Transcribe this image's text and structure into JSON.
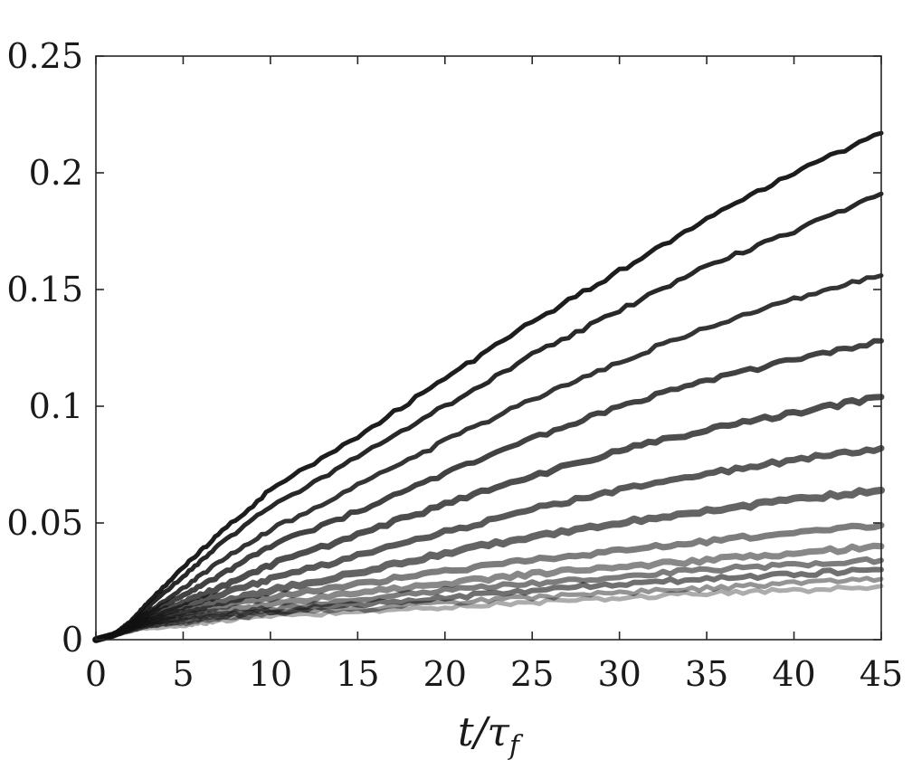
{
  "chart_data": {
    "type": "line",
    "title": "",
    "xlabel": "t/τ_f",
    "xlabel_parts": {
      "main": "t/τ",
      "subscript": "f"
    },
    "ylabel": "",
    "xlim": [
      0,
      45
    ],
    "ylim": [
      0,
      0.25
    ],
    "xticks": [
      0,
      5,
      10,
      15,
      20,
      25,
      30,
      35,
      40,
      45
    ],
    "xtick_labels": [
      "0",
      "5",
      "10",
      "15",
      "20",
      "25",
      "30",
      "35",
      "40",
      "45"
    ],
    "yticks": [
      0,
      0.05,
      0.1,
      0.15,
      0.2,
      0.25
    ],
    "ytick_labels": [
      "0",
      "0.05",
      "0.1",
      "0.15",
      "0.2",
      "0.25"
    ],
    "grid": false,
    "legend": "none",
    "series_note_colors": {
      "dark": "#111111",
      "light": "#8a8a8a"
    },
    "x": [
      0,
      1,
      2,
      3,
      5,
      7,
      10,
      15,
      20,
      25,
      30,
      35,
      40,
      45
    ],
    "series": [
      {
        "values": [
          0,
          0.002,
          0.008,
          0.016,
          0.031,
          0.045,
          0.064,
          0.087,
          0.112,
          0.136,
          0.158,
          0.18,
          0.2,
          0.217
        ],
        "opacity": 0.95,
        "width": 5
      },
      {
        "values": [
          0,
          0.002,
          0.007,
          0.014,
          0.027,
          0.04,
          0.057,
          0.078,
          0.1,
          0.122,
          0.141,
          0.16,
          0.175,
          0.191
        ],
        "opacity": 0.9,
        "width": 5
      },
      {
        "values": [
          0,
          0.002,
          0.007,
          0.012,
          0.022,
          0.033,
          0.047,
          0.066,
          0.085,
          0.103,
          0.119,
          0.134,
          0.146,
          0.156
        ],
        "opacity": 0.85,
        "width": 5
      },
      {
        "values": [
          0,
          0.002,
          0.006,
          0.011,
          0.019,
          0.027,
          0.04,
          0.055,
          0.071,
          0.086,
          0.1,
          0.111,
          0.12,
          0.128
        ],
        "opacity": 0.8,
        "width": 6
      },
      {
        "values": [
          0,
          0.002,
          0.006,
          0.01,
          0.016,
          0.022,
          0.032,
          0.045,
          0.058,
          0.07,
          0.081,
          0.09,
          0.097,
          0.104
        ],
        "opacity": 0.75,
        "width": 7
      },
      {
        "values": [
          0,
          0.002,
          0.006,
          0.009,
          0.014,
          0.019,
          0.026,
          0.036,
          0.046,
          0.056,
          0.064,
          0.071,
          0.077,
          0.082
        ],
        "opacity": 0.7,
        "width": 7
      },
      {
        "values": [
          0,
          0.002,
          0.005,
          0.008,
          0.012,
          0.016,
          0.021,
          0.029,
          0.037,
          0.044,
          0.05,
          0.055,
          0.06,
          0.064
        ],
        "opacity": 0.65,
        "width": 8
      },
      {
        "values": [
          0,
          0.002,
          0.005,
          0.008,
          0.011,
          0.014,
          0.018,
          0.024,
          0.029,
          0.034,
          0.038,
          0.042,
          0.046,
          0.049
        ],
        "opacity": 0.55,
        "width": 7
      },
      {
        "values": [
          0,
          0.002,
          0.005,
          0.007,
          0.01,
          0.012,
          0.015,
          0.02,
          0.024,
          0.028,
          0.031,
          0.034,
          0.037,
          0.04
        ],
        "opacity": 0.5,
        "width": 7
      },
      {
        "values": [
          0,
          0.002,
          0.005,
          0.007,
          0.009,
          0.011,
          0.013,
          0.017,
          0.021,
          0.024,
          0.027,
          0.03,
          0.032,
          0.034
        ],
        "opacity": 0.55,
        "width": 6
      },
      {
        "values": [
          0,
          0.002,
          0.004,
          0.006,
          0.008,
          0.01,
          0.012,
          0.015,
          0.018,
          0.021,
          0.024,
          0.026,
          0.028,
          0.03
        ],
        "opacity": 0.6,
        "width": 6
      },
      {
        "values": [
          0,
          0.002,
          0.004,
          0.006,
          0.007,
          0.009,
          0.011,
          0.013,
          0.016,
          0.018,
          0.02,
          0.022,
          0.024,
          0.026
        ],
        "opacity": 0.45,
        "width": 5
      },
      {
        "values": [
          0,
          0.002,
          0.004,
          0.005,
          0.006,
          0.008,
          0.01,
          0.012,
          0.014,
          0.016,
          0.018,
          0.02,
          0.021,
          0.023
        ],
        "opacity": 0.35,
        "width": 5
      }
    ]
  }
}
